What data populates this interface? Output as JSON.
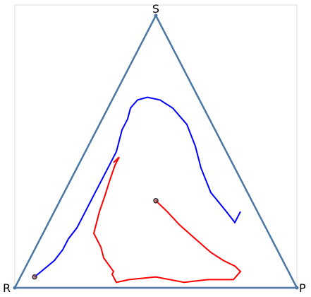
{
  "chart_data": {
    "type": "ternary-trajectory",
    "vertices": [
      "S",
      "R",
      "P"
    ],
    "grid": false,
    "colors": {
      "frame": "#4a77a3",
      "vertex_dot": "#4a77a3",
      "start_marker_edge": "#333333",
      "background": "#ffffff",
      "axes_border": "#dddddd"
    },
    "series": [
      {
        "color": "#0000ff",
        "points": [
          [
            0.04,
            0.91,
            0.05
          ],
          [
            0.07,
            0.86,
            0.07
          ],
          [
            0.1,
            0.81,
            0.09
          ],
          [
            0.14,
            0.76,
            0.1
          ],
          [
            0.18,
            0.72,
            0.1
          ],
          [
            0.22,
            0.67,
            0.11
          ],
          [
            0.26,
            0.63,
            0.11
          ],
          [
            0.3,
            0.59,
            0.11
          ],
          [
            0.34,
            0.55,
            0.11
          ],
          [
            0.38,
            0.51,
            0.11
          ],
          [
            0.42,
            0.47,
            0.11
          ],
          [
            0.46,
            0.43,
            0.11
          ],
          [
            0.5,
            0.39,
            0.11
          ],
          [
            0.54,
            0.36,
            0.1
          ],
          [
            0.58,
            0.33,
            0.09
          ],
          [
            0.62,
            0.29,
            0.09
          ],
          [
            0.66,
            0.26,
            0.08
          ],
          [
            0.69,
            0.22,
            0.09
          ],
          [
            0.7,
            0.18,
            0.12
          ],
          [
            0.69,
            0.14,
            0.17
          ],
          [
            0.66,
            0.11,
            0.23
          ],
          [
            0.6,
            0.09,
            0.31
          ],
          [
            0.52,
            0.1,
            0.38
          ],
          [
            0.44,
            0.12,
            0.44
          ],
          [
            0.35,
            0.13,
            0.52
          ],
          [
            0.28,
            0.11,
            0.61
          ],
          [
            0.24,
            0.1,
            0.66
          ],
          [
            0.28,
            0.06,
            0.66
          ]
        ]
      },
      {
        "color": "#ff0000",
        "points": [
          [
            0.32,
            0.34,
            0.34
          ],
          [
            0.28,
            0.32,
            0.4
          ],
          [
            0.23,
            0.3,
            0.47
          ],
          [
            0.18,
            0.27,
            0.55
          ],
          [
            0.13,
            0.24,
            0.63
          ],
          [
            0.1,
            0.21,
            0.69
          ],
          [
            0.08,
            0.18,
            0.74
          ],
          [
            0.06,
            0.17,
            0.77
          ],
          [
            0.03,
            0.21,
            0.76
          ],
          [
            0.03,
            0.3,
            0.67
          ],
          [
            0.02,
            0.39,
            0.59
          ],
          [
            0.04,
            0.48,
            0.48
          ],
          [
            0.03,
            0.58,
            0.39
          ],
          [
            0.02,
            0.63,
            0.35
          ],
          [
            0.05,
            0.63,
            0.32
          ],
          [
            0.06,
            0.62,
            0.32
          ],
          [
            0.11,
            0.63,
            0.26
          ],
          [
            0.15,
            0.62,
            0.23
          ],
          [
            0.2,
            0.62,
            0.18
          ],
          [
            0.28,
            0.56,
            0.16
          ],
          [
            0.34,
            0.51,
            0.15
          ],
          [
            0.39,
            0.47,
            0.14
          ],
          [
            0.45,
            0.42,
            0.13
          ],
          [
            0.48,
            0.39,
            0.13
          ],
          [
            0.46,
            0.42,
            0.12
          ]
        ]
      }
    ]
  }
}
